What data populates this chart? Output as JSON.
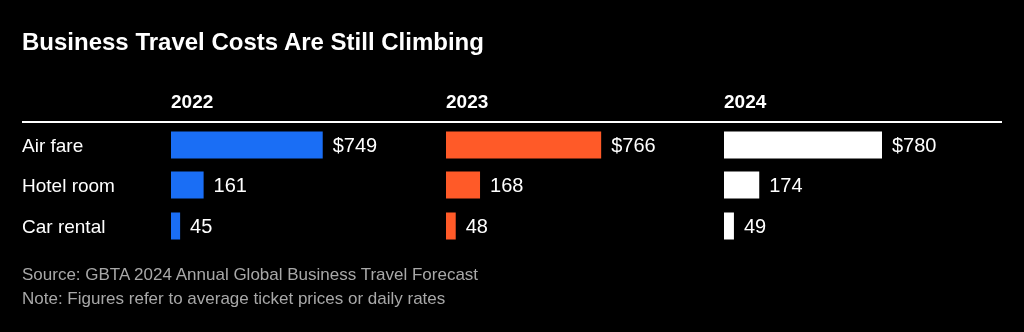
{
  "chart_data": [
    {
      "type": "bar",
      "orientation": "horizontal",
      "title": "Business Travel Costs Are Still Climbing",
      "subtitle": "2022",
      "categories": [
        "Air fare",
        "Hotel room",
        "Car rental"
      ],
      "values": [
        749,
        161,
        45
      ],
      "value_labels": [
        "$749",
        "161",
        "45"
      ],
      "color": "#1a6ef5",
      "tick_labels": "y",
      "annotations": [
        "Source: GBTA 2024 Annual Global Business Travel Forecast",
        "Note: Figures refer to average ticket prices or daily rates"
      ]
    },
    {
      "type": "bar",
      "orientation": "horizontal",
      "subtitle": "2023",
      "categories": [
        "Air fare",
        "Hotel room",
        "Car rental"
      ],
      "values": [
        766,
        168,
        48
      ],
      "value_labels": [
        "$766",
        "168",
        "48"
      ],
      "color": "#ff5a28",
      "tick_labels": false
    },
    {
      "type": "bar",
      "orientation": "horizontal",
      "subtitle": "2024",
      "categories": [
        "Air fare",
        "Hotel room",
        "Car rental"
      ],
      "values": [
        780,
        174,
        49
      ],
      "value_labels": [
        "$780",
        "174",
        "49"
      ],
      "color": "#ffffff",
      "tick_labels": false
    }
  ]
}
